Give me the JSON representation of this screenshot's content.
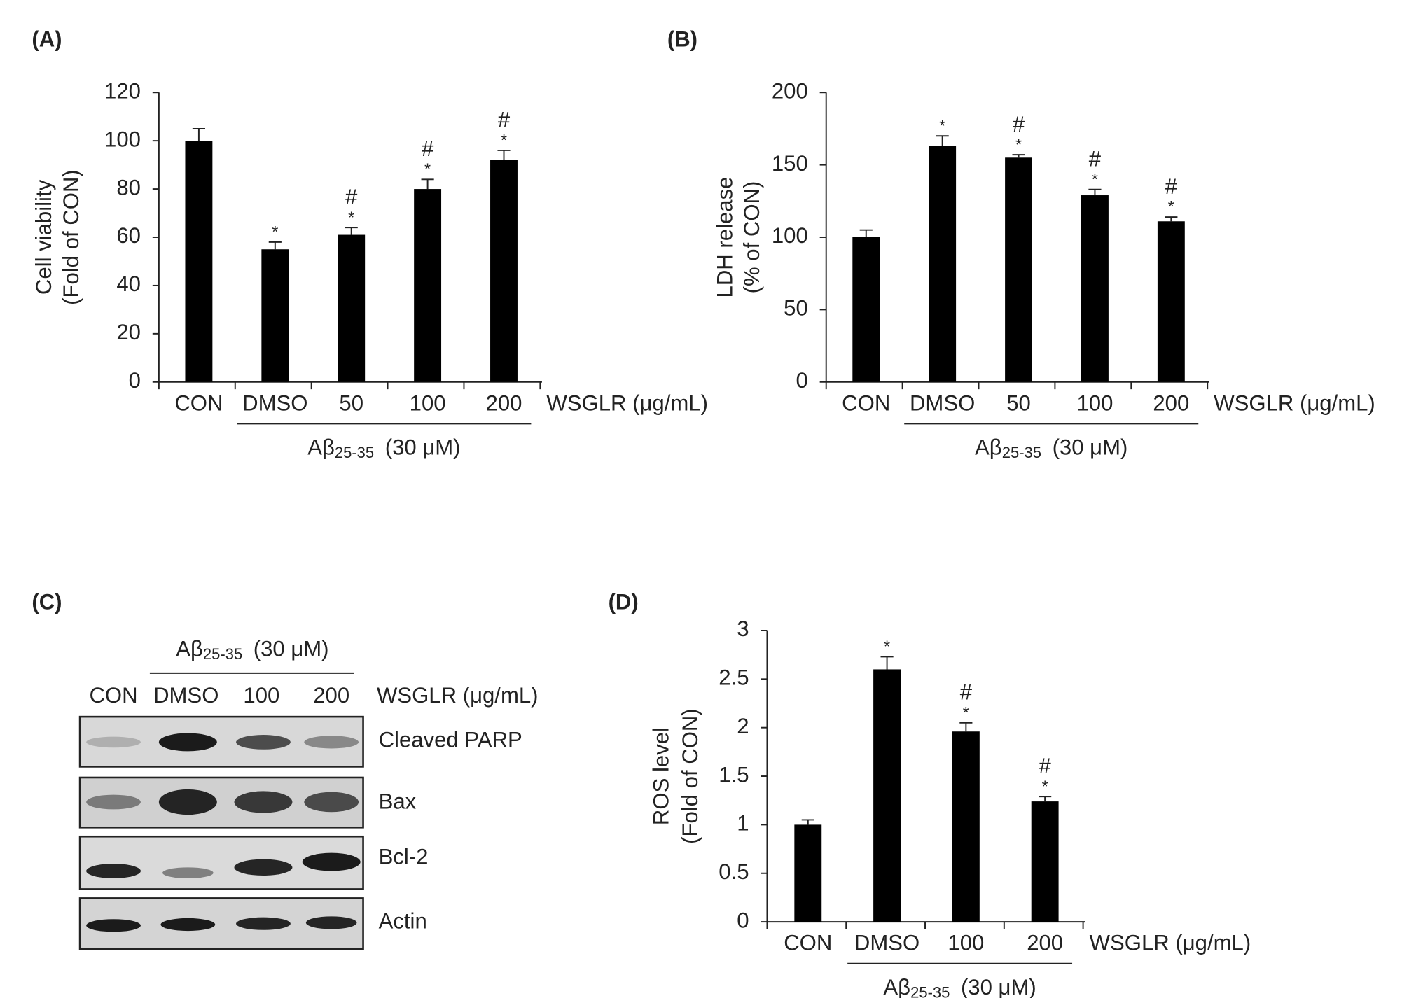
{
  "chart_data": [
    {
      "type": "bar",
      "panel": "(A)",
      "ylabel": [
        "Cell viability",
        "(Fold of CON)"
      ],
      "categories": [
        "CON",
        "DMSO",
        "50",
        "100",
        "200"
      ],
      "xlabel": "WSGLR (μg/mL)",
      "group_label": {
        "main": "Aβ",
        "sub": "25-35",
        "rest": "(30 μM)"
      },
      "series": [
        {
          "color": "#000000",
          "values": [
            100,
            55,
            61,
            80,
            92
          ],
          "errors": [
            5,
            3,
            3,
            4,
            4
          ]
        }
      ],
      "annotations": [
        [],
        [
          "*"
        ],
        [
          "#",
          "*"
        ],
        [
          "#",
          "*"
        ],
        [
          "#",
          "*"
        ]
      ],
      "ylim": [
        0,
        120
      ],
      "yticks": [
        0,
        20,
        40,
        60,
        80,
        100,
        120
      ]
    },
    {
      "type": "bar",
      "panel": "(B)",
      "ylabel": [
        "LDH release",
        "(% of CON)"
      ],
      "categories": [
        "CON",
        "DMSO",
        "50",
        "100",
        "200"
      ],
      "xlabel": "WSGLR (μg/mL)",
      "group_label": {
        "main": "Aβ",
        "sub": "25-35",
        "rest": "(30 μM)"
      },
      "series": [
        {
          "color": "#000000",
          "values": [
            100,
            163,
            155,
            129,
            111
          ],
          "errors": [
            5,
            7,
            2,
            4,
            3
          ]
        }
      ],
      "annotations": [
        [],
        [
          "*"
        ],
        [
          "#",
          "*"
        ],
        [
          "#",
          "*"
        ],
        [
          "#",
          "*"
        ]
      ],
      "ylim": [
        0,
        200
      ],
      "yticks": [
        0,
        50,
        100,
        150,
        200
      ]
    },
    {
      "type": "bar",
      "panel": "(D)",
      "ylabel": [
        "ROS level",
        "(Fold of CON)"
      ],
      "categories": [
        "CON",
        "DMSO",
        "100",
        "200"
      ],
      "xlabel": "WSGLR (μg/mL)",
      "group_label": {
        "main": "Aβ",
        "sub": "25-35",
        "rest": "(30 μM)"
      },
      "series": [
        {
          "color": "#000000",
          "values": [
            1.0,
            2.6,
            1.96,
            1.24
          ],
          "errors": [
            0.05,
            0.13,
            0.09,
            0.05
          ]
        }
      ],
      "annotations": [
        [],
        [
          "*"
        ],
        [
          "#",
          "*"
        ],
        [
          "#",
          "*"
        ]
      ],
      "ylim": [
        0,
        3
      ],
      "yticks": [
        0,
        0.5,
        1,
        1.5,
        2,
        2.5,
        3
      ]
    }
  ],
  "blot": {
    "panel": "(C)",
    "group_label": {
      "main": "Aβ",
      "sub": "25-35",
      "rest": "(30 μM)"
    },
    "lanes": [
      "CON",
      "DMSO",
      "100",
      "200"
    ],
    "xlabel": "WSGLR (μg/mL)",
    "rows": [
      "Cleaved PARP",
      "Bax",
      "Bcl-2",
      "Actin"
    ]
  }
}
